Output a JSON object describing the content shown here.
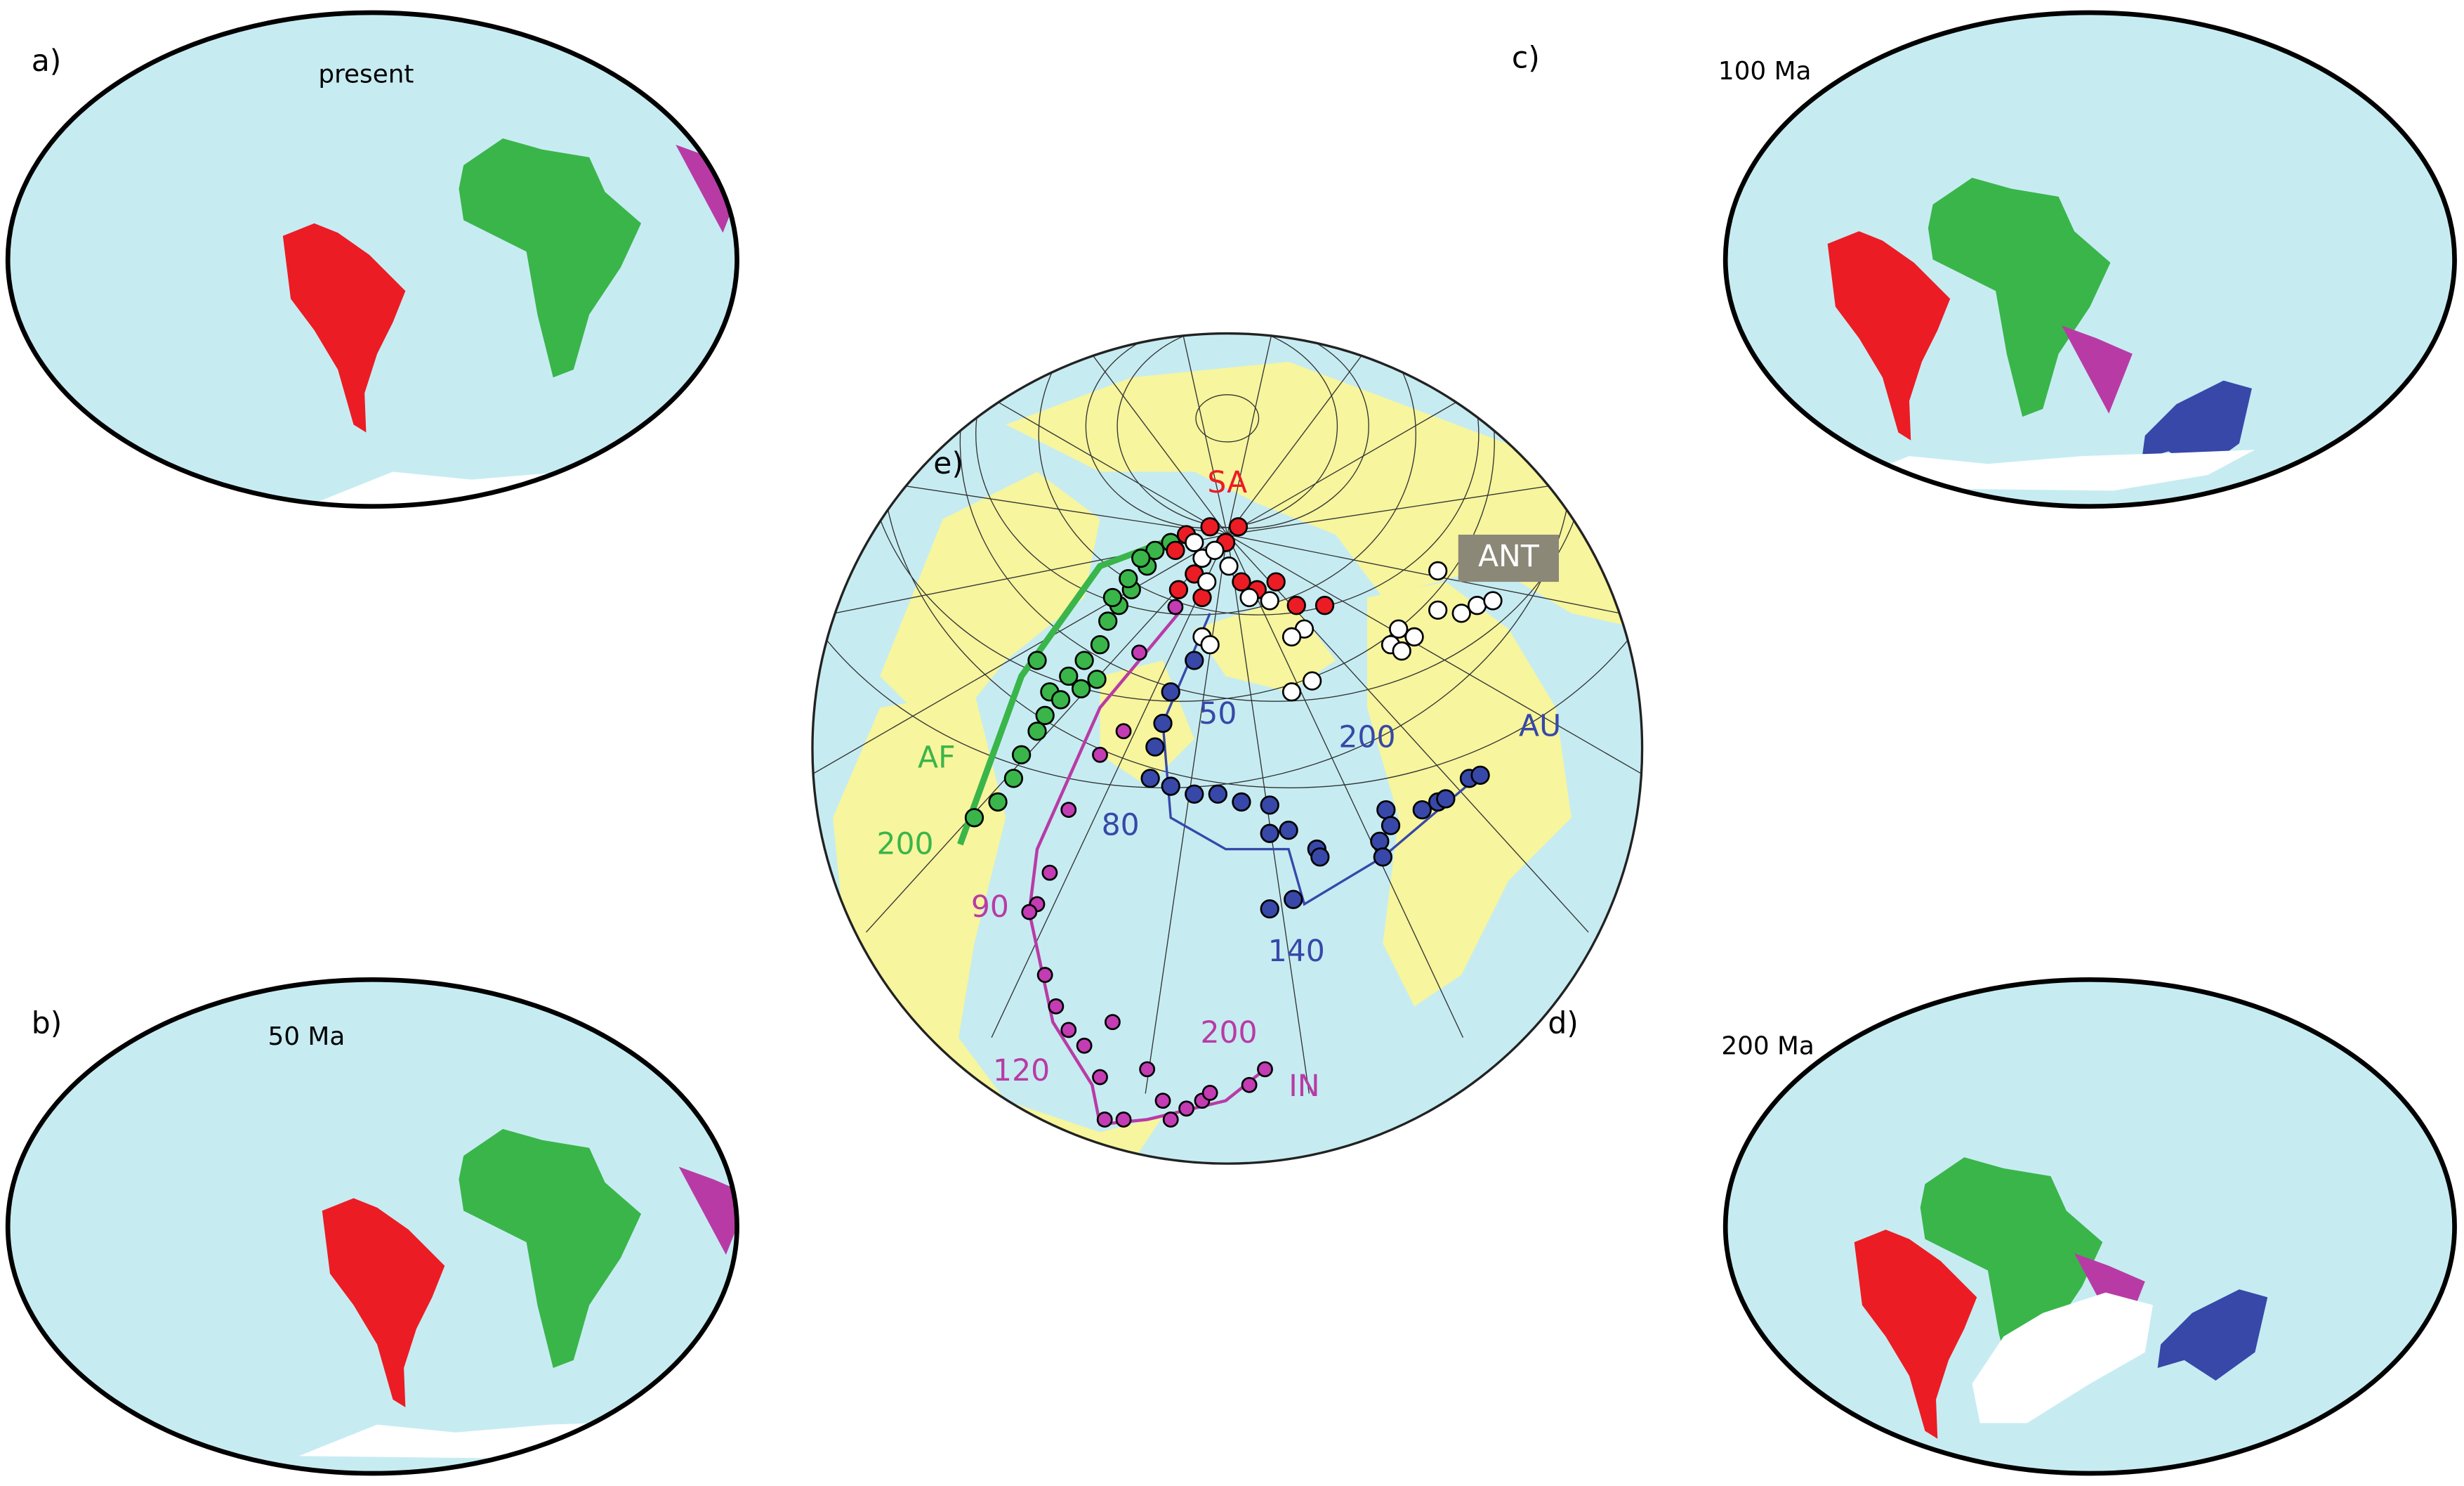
{
  "panels": [
    {
      "label": "a)",
      "title": "present"
    },
    {
      "label": "b)",
      "title": "50 Ma"
    },
    {
      "label": "c)",
      "title": "100 Ma"
    },
    {
      "label": "d)",
      "title": "200 Ma"
    }
  ],
  "globe": {
    "label": "e)",
    "plates": [
      "SA",
      "ANT",
      "AF",
      "AU",
      "IN"
    ],
    "ages": [
      "50",
      "200",
      "80",
      "90",
      "140",
      "200",
      "120",
      "200"
    ]
  }
}
